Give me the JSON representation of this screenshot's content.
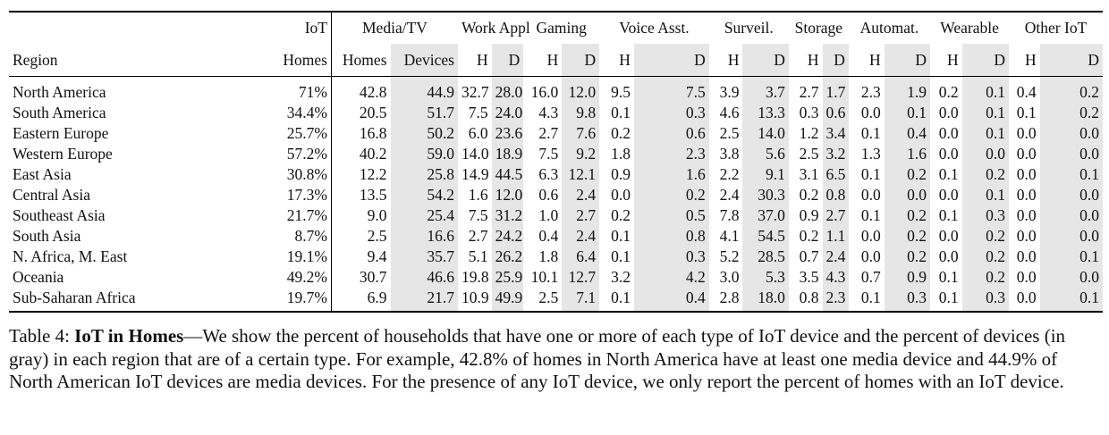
{
  "table": {
    "groups": [
      {
        "label": "IoT",
        "span": 1
      },
      {
        "label": "Media/TV",
        "span": 2
      },
      {
        "label": "Work Appl",
        "span": 2
      },
      {
        "label": "Gaming",
        "span": 2
      },
      {
        "label": "Voice  Asst.",
        "span": 2
      },
      {
        "label": "Surveil.",
        "span": 2
      },
      {
        "label": "Storage",
        "span": 2
      },
      {
        "label": "Automat.",
        "span": 2
      },
      {
        "label": "Wearable",
        "span": 2
      },
      {
        "label": "Other IoT",
        "span": 2
      }
    ],
    "subheaders": [
      "Region",
      "Homes",
      "Homes",
      "Devices",
      "H",
      "D",
      "H",
      "D",
      "H",
      "D",
      "H",
      "D",
      "H",
      "D",
      "H",
      "D",
      "H",
      "D",
      "H",
      "D"
    ],
    "rows": [
      [
        "North America",
        "71%",
        "42.8",
        "44.9",
        "32.7",
        "28.0",
        "16.0",
        "12.0",
        "9.5",
        "7.5",
        "3.9",
        "3.7",
        "2.7",
        "1.7",
        "2.3",
        "1.9",
        "0.2",
        "0.1",
        "0.4",
        "0.2"
      ],
      [
        "South America",
        "34.4%",
        "20.5",
        "51.7",
        "7.5",
        "24.0",
        "4.3",
        "9.8",
        "0.1",
        "0.3",
        "4.6",
        "13.3",
        "0.3",
        "0.6",
        "0.0",
        "0.1",
        "0.0",
        "0.1",
        "0.1",
        "0.2"
      ],
      [
        "Eastern Europe",
        "25.7%",
        "16.8",
        "50.2",
        "6.0",
        "23.6",
        "2.7",
        "7.6",
        "0.2",
        "0.6",
        "2.5",
        "14.0",
        "1.2",
        "3.4",
        "0.1",
        "0.4",
        "0.0",
        "0.1",
        "0.0",
        "0.0"
      ],
      [
        "Western Europe",
        "57.2%",
        "40.2",
        "59.0",
        "14.0",
        "18.9",
        "7.5",
        "9.2",
        "1.8",
        "2.3",
        "3.8",
        "5.6",
        "2.5",
        "3.2",
        "1.3",
        "1.6",
        "0.0",
        "0.0",
        "0.0",
        "0.0"
      ],
      [
        "East Asia",
        "30.8%",
        "12.2",
        "25.8",
        "14.9",
        "44.5",
        "6.3",
        "12.1",
        "0.9",
        "1.6",
        "2.2",
        "9.1",
        "3.1",
        "6.5",
        "0.1",
        "0.2",
        "0.1",
        "0.2",
        "0.0",
        "0.1"
      ],
      [
        "Central Asia",
        "17.3%",
        "13.5",
        "54.2",
        "1.6",
        "12.0",
        "0.6",
        "2.4",
        "0.0",
        "0.2",
        "2.4",
        "30.3",
        "0.2",
        "0.8",
        "0.0",
        "0.0",
        "0.0",
        "0.1",
        "0.0",
        "0.0"
      ],
      [
        "Southeast Asia",
        "21.7%",
        "9.0",
        "25.4",
        "7.5",
        "31.2",
        "1.0",
        "2.7",
        "0.2",
        "0.5",
        "7.8",
        "37.0",
        "0.9",
        "2.7",
        "0.1",
        "0.2",
        "0.1",
        "0.3",
        "0.0",
        "0.0"
      ],
      [
        "South Asia",
        "8.7%",
        "2.5",
        "16.6",
        "2.7",
        "24.2",
        "0.4",
        "2.4",
        "0.1",
        "0.8",
        "4.1",
        "54.5",
        "0.2",
        "1.1",
        "0.0",
        "0.2",
        "0.0",
        "0.2",
        "0.0",
        "0.0"
      ],
      [
        "N. Africa, M. East",
        "19.1%",
        "9.4",
        "35.7",
        "5.1",
        "26.2",
        "1.8",
        "6.4",
        "0.1",
        "0.3",
        "5.2",
        "28.5",
        "0.7",
        "2.4",
        "0.0",
        "0.2",
        "0.0",
        "0.2",
        "0.0",
        "0.1"
      ],
      [
        "Oceania",
        "49.2%",
        "30.7",
        "46.6",
        "19.8",
        "25.9",
        "10.1",
        "12.7",
        "3.2",
        "4.2",
        "3.0",
        "5.3",
        "3.5",
        "4.3",
        "0.7",
        "0.9",
        "0.1",
        "0.2",
        "0.0",
        "0.0"
      ],
      [
        "Sub-Saharan Africa",
        "19.7%",
        "6.9",
        "21.7",
        "10.9",
        "49.9",
        "2.5",
        "7.1",
        "0.1",
        "0.4",
        "2.8",
        "18.0",
        "0.8",
        "2.3",
        "0.1",
        "0.3",
        "0.1",
        "0.3",
        "0.0",
        "0.1"
      ]
    ]
  },
  "caption": {
    "label": "Table 4: ",
    "title": "IoT in Homes",
    "text": "—We show the percent of households that have one or more of each type of IoT device and the percent of devices (in gray) in each region that are of a certain type. For example, 42.8% of homes in North America have at least one media device and 44.9% of North American IoT devices are media devices. For the presence of any IoT device, we only report the percent of homes with an IoT device."
  },
  "colors": {
    "gray_cell": "#e6e6e6",
    "rule": "#000000",
    "text": "#111111"
  }
}
